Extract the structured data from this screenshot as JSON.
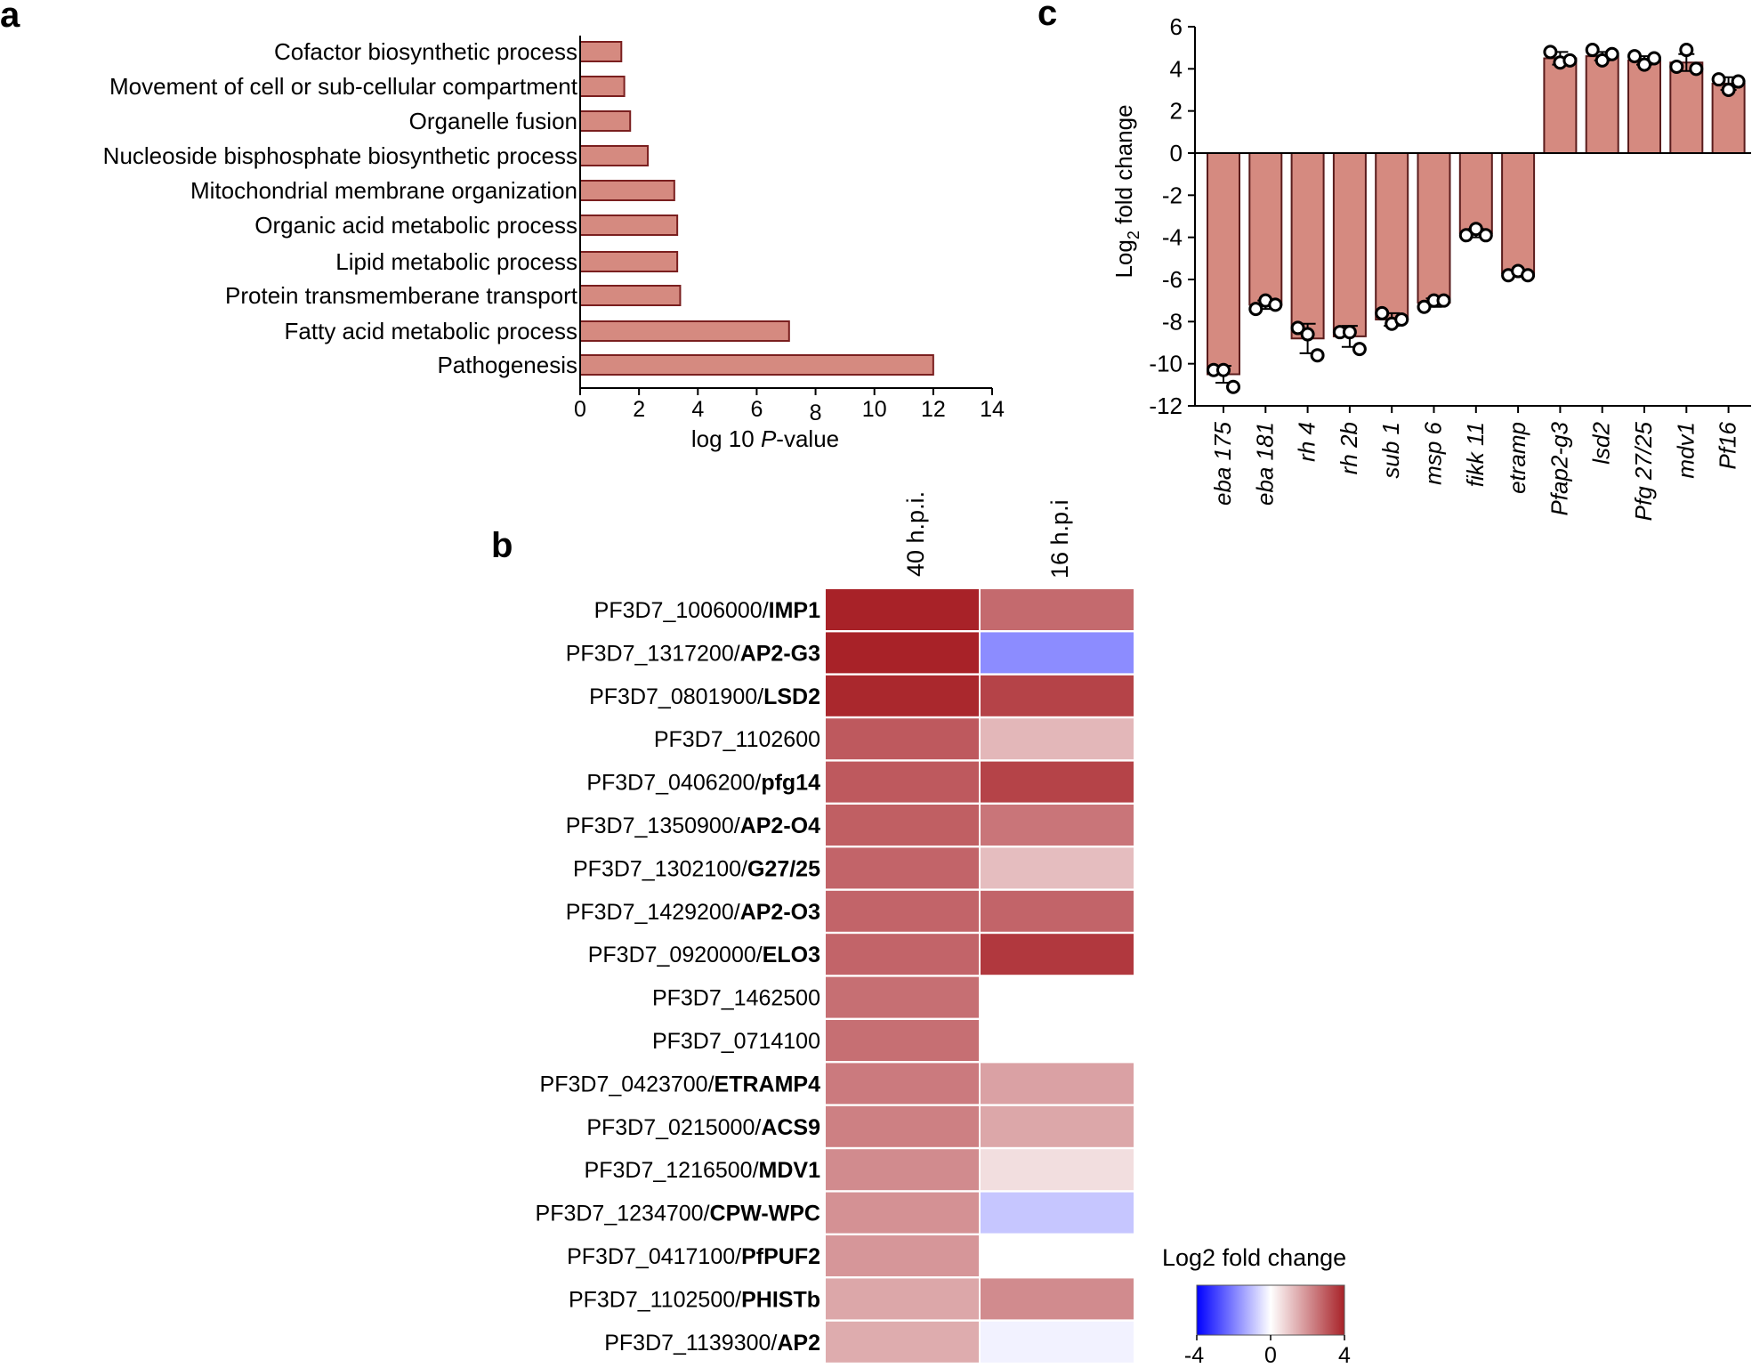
{
  "colors": {
    "bar_fill": "#d58a80",
    "bar_stroke": "#7a1f1f",
    "heat_neg": "#0000ff",
    "heat_mid": "#ffffff",
    "heat_pos": "#a82228"
  },
  "panel_a": {
    "letter": "a",
    "chart_data": {
      "type": "bar",
      "orientation": "horizontal",
      "categories": [
        "Cofactor biosynthetic process",
        "Movement of cell or sub-cellular compartment",
        "Organelle fusion",
        "Nucleoside bisphosphate biosynthetic process",
        "Mitochondrial membrane organization",
        "Organic acid metabolic process",
        "Lipid metabolic process",
        "Protein transmemberane  transport",
        "Fatty acid metabolic process",
        "Pathogenesis"
      ],
      "values": [
        1.4,
        1.5,
        1.7,
        2.3,
        3.2,
        3.3,
        3.3,
        3.4,
        7.1,
        12.0
      ],
      "xlim": [
        0,
        14
      ],
      "xticks": [
        "0",
        "2",
        "4",
        "6",
        "8",
        "10",
        "12",
        "14"
      ],
      "xlabel_prefix": "log 10 ",
      "xlabel_italic": "P",
      "xlabel_suffix": "-value"
    }
  },
  "panel_b": {
    "letter": "b",
    "chart_data": {
      "type": "heatmap",
      "columns": [
        "40 h.p.i.",
        "16 h.p.i"
      ],
      "rows": [
        {
          "id": "PF3D7_1006000/",
          "name": "IMP1",
          "values": [
            4.6,
            2.7
          ]
        },
        {
          "id": "PF3D7_1317200/",
          "name": "AP2-G3",
          "values": [
            4.1,
            -1.8
          ]
        },
        {
          "id": "PF3D7_0801900/",
          "name": "LSD2",
          "values": [
            3.9,
            3.4
          ]
        },
        {
          "id": "PF3D7_1102600",
          "name": "",
          "values": [
            3.0,
            1.3
          ]
        },
        {
          "id": "PF3D7_0406200/",
          "name": "pfg14",
          "values": [
            3.0,
            3.4
          ]
        },
        {
          "id": "PF3D7_1350900/",
          "name": "AP2-O4",
          "values": [
            2.9,
            2.5
          ]
        },
        {
          "id": "PF3D7_1302100/",
          "name": "G27/25",
          "values": [
            2.8,
            1.2
          ]
        },
        {
          "id": "PF3D7_1429200/",
          "name": "AP2-O3",
          "values": [
            2.8,
            2.8
          ]
        },
        {
          "id": "PF3D7_0920000/",
          "name": "ELO3",
          "values": [
            2.8,
            3.6
          ]
        },
        {
          "id": "PF3D7_1462500",
          "name": "",
          "values": [
            2.6,
            null
          ]
        },
        {
          "id": "PF3D7_0714100",
          "name": "",
          "values": [
            2.6,
            null
          ]
        },
        {
          "id": "PF3D7_0423700/",
          "name": "ETRAMP4",
          "values": [
            2.4,
            1.7
          ]
        },
        {
          "id": "PF3D7_0215000/",
          "name": "ACS9",
          "values": [
            2.3,
            1.6
          ]
        },
        {
          "id": "PF3D7_1216500/",
          "name": "MDV1",
          "values": [
            2.1,
            0.6
          ]
        },
        {
          "id": "PF3D7_1234700/",
          "name": "CPW-WPC",
          "values": [
            2.0,
            -0.9
          ]
        },
        {
          "id": "PF3D7_0417100/",
          "name": "PfPUF2",
          "values": [
            1.9,
            null
          ]
        },
        {
          "id": "PF3D7_1102500/",
          "name": "PHISTb",
          "values": [
            1.6,
            2.1
          ]
        },
        {
          "id": "PF3D7_1139300/",
          "name": "AP2",
          "values": [
            1.5,
            -0.2
          ]
        }
      ],
      "legend_title": "Log2 fold change",
      "legend_ticks": [
        "-4",
        "0",
        "4"
      ],
      "clim": [
        -4,
        4
      ]
    }
  },
  "panel_c": {
    "letter": "c",
    "chart_data": {
      "type": "bar",
      "ylabel_prefix": "Log",
      "ylabel_sub": "2",
      "ylabel_suffix": " fold change",
      "ylim": [
        -12,
        6
      ],
      "yticks": [
        "-12",
        "-10",
        "-8",
        "-6",
        "-4",
        "-2",
        "0",
        "2",
        "4",
        "6"
      ],
      "categories": [
        "eba 175",
        "eba 181",
        "rh 4",
        "rh 2b",
        "sub 1",
        "msp 6",
        "fikk 11",
        "etramp",
        "Pfap2-g3",
        "lsd2",
        "Pfg 27/25",
        "mdv1",
        "Pf16"
      ],
      "values": [
        -10.5,
        -7.2,
        -8.8,
        -8.7,
        -7.9,
        -7.1,
        -3.8,
        -5.7,
        4.5,
        4.6,
        4.4,
        4.3,
        3.3
      ],
      "errors": [
        0.4,
        0.2,
        0.7,
        0.5,
        0.3,
        0.2,
        0.2,
        0.1,
        0.3,
        0.2,
        0.2,
        0.4,
        0.3
      ],
      "replicates": [
        [
          -10.3,
          -10.3,
          -11.1
        ],
        [
          -7.4,
          -7.0,
          -7.2
        ],
        [
          -8.3,
          -8.6,
          -9.6
        ],
        [
          -8.5,
          -8.5,
          -9.3
        ],
        [
          -7.6,
          -8.1,
          -7.9
        ],
        [
          -7.3,
          -7.0,
          -7.0
        ],
        [
          -3.9,
          -3.6,
          -3.9
        ],
        [
          -5.8,
          -5.6,
          -5.8
        ],
        [
          4.8,
          4.3,
          4.4
        ],
        [
          4.9,
          4.4,
          4.7
        ],
        [
          4.6,
          4.2,
          4.5
        ],
        [
          4.1,
          4.9,
          4.0
        ],
        [
          3.5,
          3.0,
          3.4
        ]
      ]
    }
  }
}
